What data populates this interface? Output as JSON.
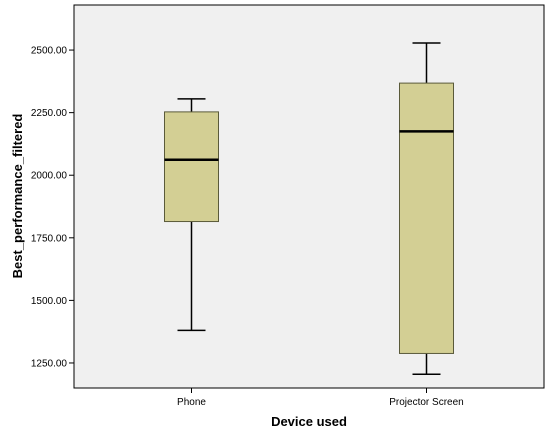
{
  "chart_data": {
    "type": "boxplot",
    "xlabel": "Device used",
    "ylabel": "Best_performance_filtered",
    "categories": [
      "Phone",
      "Projector Screen"
    ],
    "boxes": [
      {
        "category": "Phone",
        "min": 1380,
        "q1": 1815,
        "median": 2062,
        "q3": 2253,
        "max": 2305
      },
      {
        "category": "Projector Screen",
        "min": 1205,
        "q1": 1288,
        "median": 2175,
        "q3": 2368,
        "max": 2528
      }
    ],
    "yticks": [
      {
        "value": 1250,
        "label": "1250.00"
      },
      {
        "value": 1500,
        "label": "1500.00"
      },
      {
        "value": 1750,
        "label": "1750.00"
      },
      {
        "value": 2000,
        "label": "2000.00"
      },
      {
        "value": 2250,
        "label": "2250.00"
      },
      {
        "value": 2500,
        "label": "2500.00"
      }
    ],
    "ylim": [
      1150,
      2680
    ],
    "grid": false,
    "colors": {
      "plot_background": "#f0f0f0",
      "box_fill": "#d3cf94",
      "box_stroke": "#5a5a3a",
      "whisker": "#000000",
      "median": "#000000"
    }
  }
}
